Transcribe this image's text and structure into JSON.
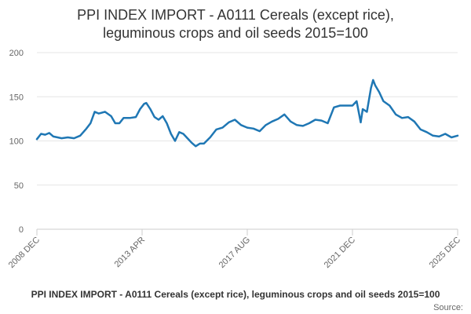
{
  "chart_data": {
    "type": "line",
    "title_line1": "PPI INDEX IMPORT - A0111 Cereals (except rice),",
    "title_line2": "leguminous crops and oil seeds 2015=100",
    "ylim": [
      0,
      200
    ],
    "y_ticks": [
      "0",
      "50",
      "100",
      "150",
      "200"
    ],
    "x_tick_labels": [
      "2008 DEC",
      "2013 APR",
      "2017 AUG",
      "2021 DEC",
      "2025 DEC"
    ],
    "grid": true,
    "legend_position": "bottom",
    "line_color": "#1f77b4",
    "series": [
      {
        "name": "PPI INDEX IMPORT - A0111 Cereals (except rice), leguminous crops and oil seeds 2015=100",
        "points": [
          [
            "2008-12",
            102
          ],
          [
            "2009-02",
            108
          ],
          [
            "2009-04",
            107
          ],
          [
            "2009-06",
            109
          ],
          [
            "2009-08",
            105
          ],
          [
            "2009-10",
            104
          ],
          [
            "2009-12",
            103
          ],
          [
            "2010-03",
            104
          ],
          [
            "2010-06",
            103
          ],
          [
            "2010-09",
            106
          ],
          [
            "2010-12",
            114
          ],
          [
            "2011-02",
            120
          ],
          [
            "2011-04",
            133
          ],
          [
            "2011-06",
            131
          ],
          [
            "2011-09",
            133
          ],
          [
            "2011-12",
            128
          ],
          [
            "2012-02",
            120
          ],
          [
            "2012-04",
            120
          ],
          [
            "2012-06",
            126
          ],
          [
            "2012-09",
            126
          ],
          [
            "2012-12",
            127
          ],
          [
            "2013-02",
            136
          ],
          [
            "2013-04",
            142
          ],
          [
            "2013-05",
            143
          ],
          [
            "2013-07",
            136
          ],
          [
            "2013-09",
            127
          ],
          [
            "2013-11",
            124
          ],
          [
            "2014-01",
            128
          ],
          [
            "2014-03",
            120
          ],
          [
            "2014-05",
            108
          ],
          [
            "2014-07",
            100
          ],
          [
            "2014-09",
            110
          ],
          [
            "2014-11",
            108
          ],
          [
            "2015-01",
            103
          ],
          [
            "2015-03",
            98
          ],
          [
            "2015-05",
            94
          ],
          [
            "2015-07",
            97
          ],
          [
            "2015-09",
            97
          ],
          [
            "2015-12",
            104
          ],
          [
            "2016-03",
            113
          ],
          [
            "2016-06",
            115
          ],
          [
            "2016-09",
            121
          ],
          [
            "2016-12",
            124
          ],
          [
            "2017-03",
            118
          ],
          [
            "2017-06",
            115
          ],
          [
            "2017-09",
            114
          ],
          [
            "2017-12",
            111
          ],
          [
            "2018-03",
            118
          ],
          [
            "2018-06",
            122
          ],
          [
            "2018-09",
            125
          ],
          [
            "2018-12",
            130
          ],
          [
            "2019-03",
            122
          ],
          [
            "2019-06",
            118
          ],
          [
            "2019-09",
            117
          ],
          [
            "2019-12",
            120
          ],
          [
            "2020-03",
            124
          ],
          [
            "2020-06",
            123
          ],
          [
            "2020-09",
            120
          ],
          [
            "2020-12",
            138
          ],
          [
            "2021-03",
            140
          ],
          [
            "2021-06",
            140
          ],
          [
            "2021-09",
            140
          ],
          [
            "2021-11",
            145
          ],
          [
            "2022-01",
            121
          ],
          [
            "2022-02",
            136
          ],
          [
            "2022-04",
            133
          ],
          [
            "2022-06",
            160
          ],
          [
            "2022-07",
            169
          ],
          [
            "2022-08",
            163
          ],
          [
            "2022-10",
            155
          ],
          [
            "2022-12",
            145
          ],
          [
            "2023-03",
            140
          ],
          [
            "2023-06",
            130
          ],
          [
            "2023-09",
            126
          ],
          [
            "2023-12",
            127
          ],
          [
            "2024-03",
            122
          ],
          [
            "2024-06",
            113
          ],
          [
            "2024-09",
            110
          ],
          [
            "2024-12",
            106
          ],
          [
            "2025-03",
            105
          ],
          [
            "2025-06",
            108
          ],
          [
            "2025-09",
            104
          ],
          [
            "2025-12",
            106
          ]
        ]
      }
    ],
    "legend_label": "PPI INDEX IMPORT - A0111 Cereals (except rice), leguminous crops and oil seeds 2015=100",
    "source_label": "Source:"
  }
}
